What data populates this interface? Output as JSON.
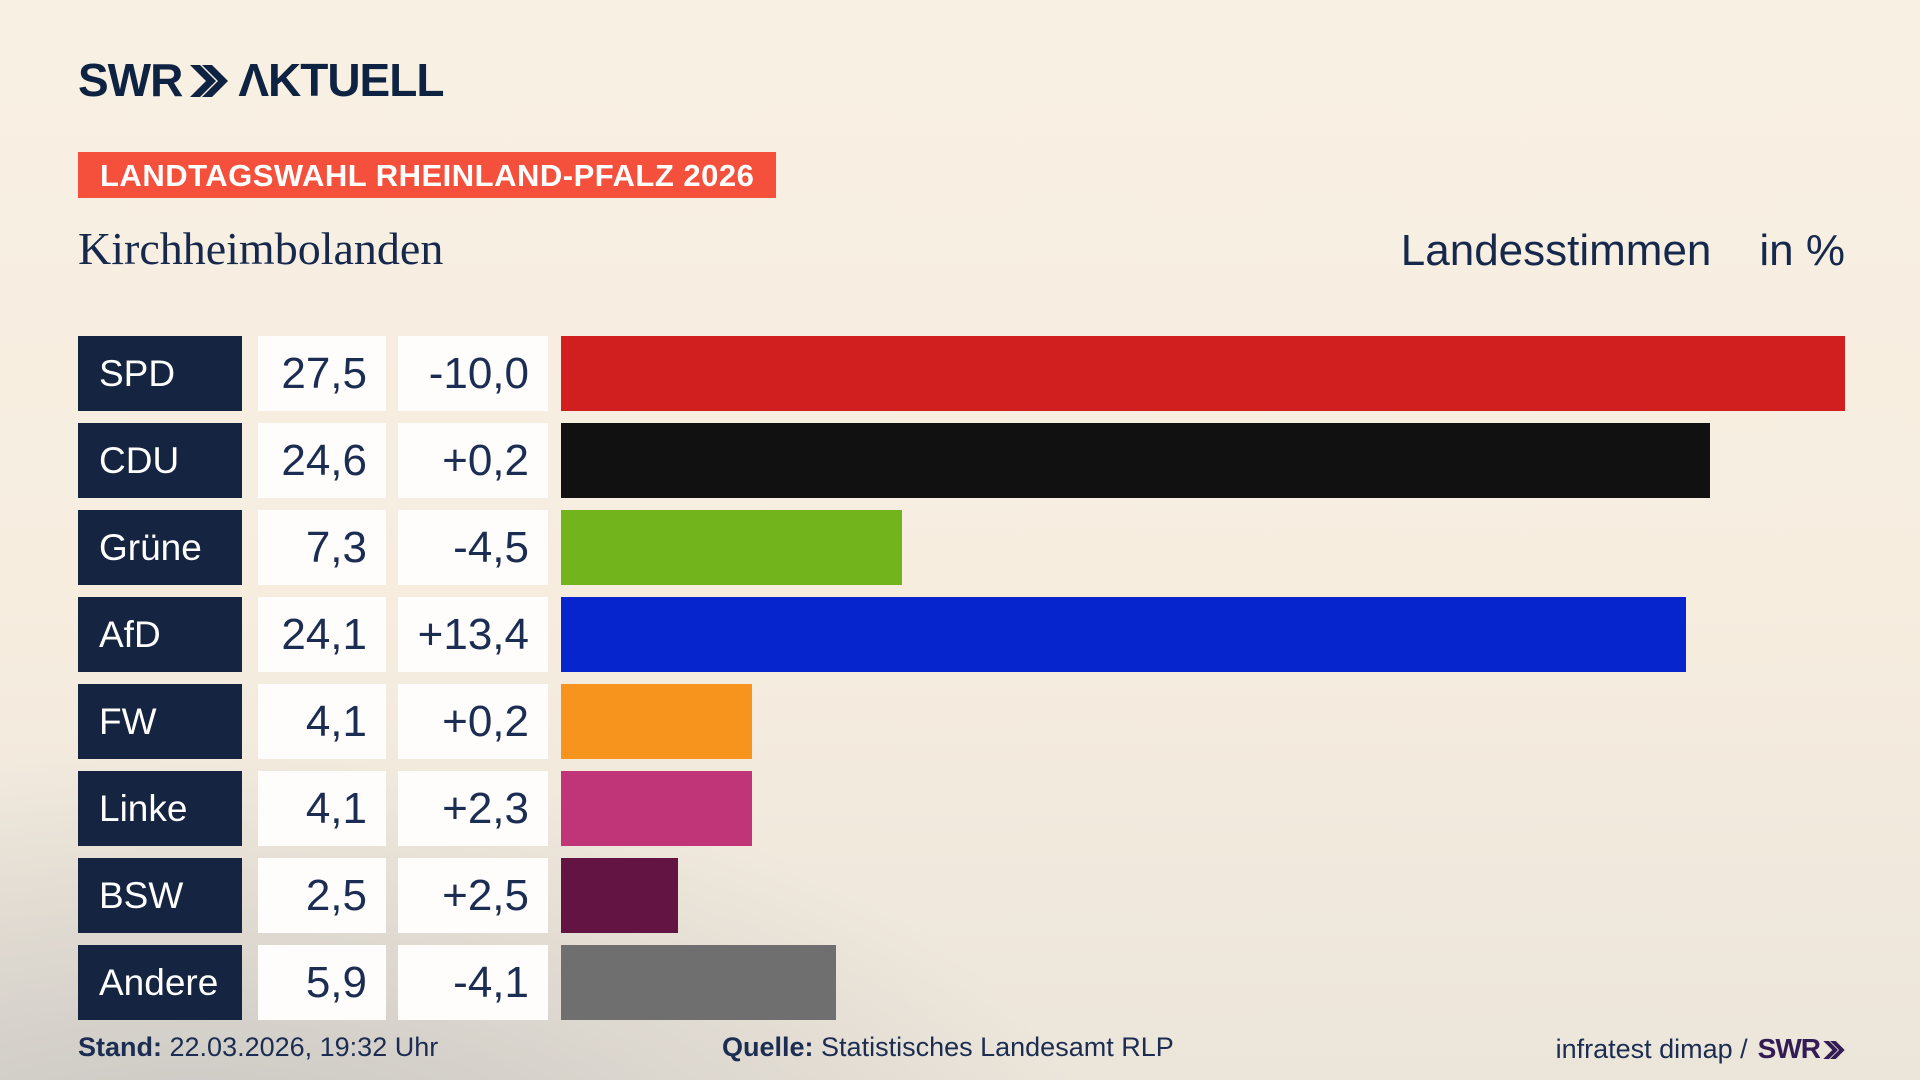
{
  "brand": {
    "logo_text": "SWR",
    "logo_suffix": "ΛKTUELL",
    "logo_color": "#0e2242"
  },
  "banner": {
    "text": "LANDTAGSWAHL RHEINLAND-PFALZ 2026",
    "bg_color": "#f4503c"
  },
  "header": {
    "region": "Kirchheimbolanden",
    "measure": "Landesstimmen",
    "unit": "in %"
  },
  "chart_data": {
    "type": "bar",
    "orientation": "horizontal",
    "title": "Landesstimmen in % - Kirchheimbolanden",
    "unit": "%",
    "max_value": 27.5,
    "categories": [
      "SPD",
      "CDU",
      "Grüne",
      "AfD",
      "FW",
      "Linke",
      "BSW",
      "Andere"
    ],
    "values": [
      27.5,
      24.6,
      7.3,
      24.1,
      4.1,
      4.1,
      2.5,
      5.9
    ],
    "changes": [
      -10.0,
      0.2,
      -4.5,
      13.4,
      0.2,
      2.3,
      2.5,
      -4.1
    ],
    "parties": [
      {
        "name": "SPD",
        "value": "27,5",
        "value_num": 27.5,
        "change": "-10,0",
        "color": "#d11f20"
      },
      {
        "name": "CDU",
        "value": "24,6",
        "value_num": 24.6,
        "change": "+0,2",
        "color": "#111111"
      },
      {
        "name": "Grüne",
        "value": "7,3",
        "value_num": 7.3,
        "change": "-4,5",
        "color": "#72b41c"
      },
      {
        "name": "AfD",
        "value": "24,1",
        "value_num": 24.1,
        "change": "+13,4",
        "color": "#0725cc"
      },
      {
        "name": "FW",
        "value": "4,1",
        "value_num": 4.1,
        "change": "+0,2",
        "color": "#f7941d"
      },
      {
        "name": "Linke",
        "value": "4,1",
        "value_num": 4.1,
        "change": "+2,3",
        "color": "#c03577"
      },
      {
        "name": "BSW",
        "value": "2,5",
        "value_num": 2.5,
        "change": "+2,5",
        "color": "#631442"
      },
      {
        "name": "Andere",
        "value": "5,9",
        "value_num": 5.9,
        "change": "-4,1",
        "color": "#6f6f6f"
      }
    ]
  },
  "footer": {
    "stand_label": "Stand:",
    "stand_value": "22.03.2026, 19:32 Uhr",
    "quelle_label": "Quelle:",
    "quelle_value": "Statistisches Landesamt RLP",
    "credit_prefix": "infratest dimap /",
    "credit_brand": "SWR",
    "credit_color": "#331c54"
  }
}
